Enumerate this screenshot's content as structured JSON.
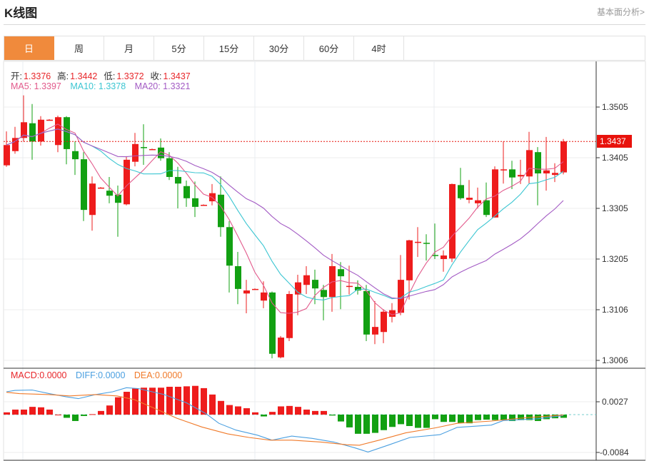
{
  "header": {
    "title": "K线图",
    "link": "基本面分析>"
  },
  "tabs": [
    {
      "label": "日",
      "active": true
    },
    {
      "label": "周"
    },
    {
      "label": "月"
    },
    {
      "label": "5分"
    },
    {
      "label": "15分"
    },
    {
      "label": "30分"
    },
    {
      "label": "60分"
    },
    {
      "label": "4时"
    }
  ],
  "ohlc_legend": {
    "open_label": "开:",
    "open": "1.3376",
    "high_label": "高:",
    "high": "1.3442",
    "low_label": "低:",
    "low": "1.3372",
    "close_label": "收:",
    "close": "1.3437"
  },
  "ma_legend": {
    "ma5": "MA5: 1.3397",
    "ma10": "MA10: 1.3378",
    "ma20": "MA20: 1.3321"
  },
  "macd_legend": {
    "macd": "MACD:0.0000",
    "diff": "DIFF:0.0000",
    "dea": "DEA:0.0000"
  },
  "price_axis": [
    "1.3505",
    "1.3405",
    "1.3305",
    "1.3205",
    "1.3106",
    "1.3006"
  ],
  "macd_axis": [
    "0.0027",
    "-0.0084"
  ],
  "last_price": "1.3437",
  "colors": {
    "up": "#ee1c1c",
    "down": "#12a012",
    "ma5": "#e25a8c",
    "ma10": "#3cc6d2",
    "ma20": "#a35bc4",
    "diff": "#4a9fe0",
    "dea": "#f07a2a",
    "accent": "#f08a3c"
  },
  "chart_data": {
    "type": "candlestick",
    "price_range": [
      1.299,
      1.356
    ],
    "candles_ohlc": [
      [
        1.339,
        1.3457,
        1.3387,
        1.343
      ],
      [
        1.3418,
        1.3466,
        1.3413,
        1.3444
      ],
      [
        1.3444,
        1.3528,
        1.3437,
        1.3475
      ],
      [
        1.3473,
        1.3511,
        1.3401,
        1.3437
      ],
      [
        1.3437,
        1.3487,
        1.3429,
        1.348
      ],
      [
        1.3479,
        1.3481,
        1.3479,
        1.348
      ],
      [
        1.343,
        1.3488,
        1.3416,
        1.3485
      ],
      [
        1.3485,
        1.3487,
        1.3392,
        1.3422
      ],
      [
        1.3418,
        1.3437,
        1.3371,
        1.3402
      ],
      [
        1.3402,
        1.3416,
        1.328,
        1.3302
      ],
      [
        1.3292,
        1.3368,
        1.3261,
        1.3354
      ],
      [
        1.3345,
        1.3347,
        1.3345,
        1.3346
      ],
      [
        1.334,
        1.3367,
        1.3315,
        1.333
      ],
      [
        1.3332,
        1.335,
        1.3249,
        1.3316
      ],
      [
        1.3313,
        1.3408,
        1.3311,
        1.3401
      ],
      [
        1.3397,
        1.3454,
        1.3388,
        1.3432
      ],
      [
        1.3426,
        1.3471,
        1.3391,
        1.3425
      ],
      [
        1.3421,
        1.3423,
        1.3421,
        1.3422
      ],
      [
        1.3425,
        1.3443,
        1.3399,
        1.3404
      ],
      [
        1.3404,
        1.3416,
        1.3361,
        1.3367
      ],
      [
        1.3367,
        1.3387,
        1.3305,
        1.3354
      ],
      [
        1.3349,
        1.336,
        1.3308,
        1.3325
      ],
      [
        1.3325,
        1.3358,
        1.3288,
        1.3308
      ],
      [
        1.3311,
        1.3313,
        1.3311,
        1.3312
      ],
      [
        1.3319,
        1.3353,
        1.3311,
        1.3335
      ],
      [
        1.3332,
        1.3368,
        1.3249,
        1.3268
      ],
      [
        1.3268,
        1.328,
        1.3139,
        1.3192
      ],
      [
        1.3191,
        1.3219,
        1.3116,
        1.3146
      ],
      [
        1.3137,
        1.3164,
        1.3098,
        1.3143
      ],
      [
        1.3145,
        1.3147,
        1.3145,
        1.3146
      ],
      [
        1.3123,
        1.3161,
        1.3108,
        1.3139
      ],
      [
        1.3139,
        1.3141,
        1.3009,
        1.3018
      ],
      [
        1.3011,
        1.3053,
        1.3009,
        1.305
      ],
      [
        1.3049,
        1.3142,
        1.3043,
        1.3136
      ],
      [
        1.3135,
        1.3174,
        1.3094,
        1.3159
      ],
      [
        1.3154,
        1.3191,
        1.3136,
        1.3173
      ],
      [
        1.3164,
        1.3184,
        1.3116,
        1.3147
      ],
      [
        1.3144,
        1.3154,
        1.3084,
        1.313
      ],
      [
        1.313,
        1.3215,
        1.3101,
        1.3191
      ],
      [
        1.3185,
        1.3199,
        1.3106,
        1.3171
      ],
      [
        1.3151,
        1.3192,
        1.3135,
        1.3152
      ],
      [
        1.315,
        1.3163,
        1.3135,
        1.3143
      ],
      [
        1.3142,
        1.3154,
        1.3043,
        1.3056
      ],
      [
        1.3056,
        1.3122,
        1.3037,
        1.3071
      ],
      [
        1.3061,
        1.3106,
        1.3039,
        1.3101
      ],
      [
        1.3091,
        1.3118,
        1.308,
        1.3104
      ],
      [
        1.3099,
        1.3213,
        1.3094,
        1.3164
      ],
      [
        1.3163,
        1.3243,
        1.3125,
        1.3242
      ],
      [
        1.3238,
        1.3268,
        1.3209,
        1.3239
      ],
      [
        1.3237,
        1.3254,
        1.3202,
        1.3236
      ],
      [
        1.3213,
        1.3275,
        1.3205,
        1.3212
      ],
      [
        1.3205,
        1.3222,
        1.318,
        1.3212
      ],
      [
        1.3206,
        1.3354,
        1.3199,
        1.3353
      ],
      [
        1.3351,
        1.3385,
        1.3322,
        1.3325
      ],
      [
        1.3322,
        1.3361,
        1.3315,
        1.3326
      ],
      [
        1.3315,
        1.3346,
        1.3305,
        1.3321
      ],
      [
        1.3321,
        1.3356,
        1.3288,
        1.3292
      ],
      [
        1.3287,
        1.3388,
        1.3287,
        1.3382
      ],
      [
        1.338,
        1.3437,
        1.3354,
        1.3382
      ],
      [
        1.3382,
        1.3399,
        1.3343,
        1.3366
      ],
      [
        1.3368,
        1.3401,
        1.3353,
        1.3371
      ],
      [
        1.3368,
        1.3456,
        1.3354,
        1.342
      ],
      [
        1.3416,
        1.3426,
        1.3311,
        1.3374
      ],
      [
        1.3374,
        1.3446,
        1.334,
        1.338
      ],
      [
        1.3371,
        1.3394,
        1.3357,
        1.3375
      ],
      [
        1.3376,
        1.3442,
        1.3372,
        1.3437
      ]
    ],
    "macd_range": [
      -0.0087,
      0.0045
    ],
    "macd_hist": [
      0.0005,
      0.0011,
      0.0011,
      0.0017,
      0.0016,
      0.0011,
      0.0,
      -0.0007,
      -0.0014,
      -0.0003,
      0.0001,
      0.0008,
      0.002,
      0.0038,
      0.005,
      0.0057,
      0.0059,
      0.0059,
      0.0059,
      0.0061,
      0.0061,
      0.0062,
      0.0063,
      0.0058,
      0.0044,
      0.003,
      0.0021,
      0.0018,
      0.0014,
      0.0005,
      -0.0004,
      0.0006,
      0.0018,
      0.0019,
      0.0017,
      0.0011,
      0.0008,
      0.0008,
      -0.0002,
      -0.0015,
      -0.0028,
      -0.0042,
      -0.0042,
      -0.004,
      -0.0034,
      -0.0027,
      -0.0021,
      -0.0025,
      -0.0029,
      -0.0029,
      -0.001,
      -0.0016,
      -0.0016,
      -0.0018,
      -0.0019,
      -0.0012,
      -0.0011,
      -0.0012,
      -0.0012,
      -0.0014,
      -0.0012,
      -0.0012,
      -0.0014,
      -0.001,
      -0.0008,
      -0.0007
    ],
    "diff": [
      [
        0,
        0.005
      ],
      [
        1,
        0.0053
      ],
      [
        3,
        0.0054
      ],
      [
        5,
        0.0046
      ],
      [
        7,
        0.0039
      ],
      [
        8.4,
        0.0035
      ],
      [
        10.4,
        0.0044
      ],
      [
        12.4,
        0.005
      ],
      [
        14,
        0.0059
      ],
      [
        15.4,
        0.0057
      ],
      [
        18.4,
        0.0044
      ],
      [
        21,
        0.0026
      ],
      [
        23.3,
        0.0002
      ],
      [
        24.8,
        -0.0019
      ],
      [
        26.8,
        -0.0034
      ],
      [
        29.3,
        -0.0045
      ],
      [
        31,
        -0.0056
      ],
      [
        33.3,
        -0.0047
      ],
      [
        35.7,
        -0.0052
      ],
      [
        38.2,
        -0.006
      ],
      [
        40.7,
        -0.0073
      ],
      [
        42.2,
        -0.0082
      ],
      [
        44.7,
        -0.0066
      ],
      [
        47.1,
        -0.005
      ],
      [
        50.6,
        -0.0044
      ],
      [
        52.6,
        -0.0028
      ],
      [
        56.6,
        -0.0023
      ],
      [
        58,
        -0.0013
      ],
      [
        62,
        -0.0009
      ],
      [
        65,
        -0.0002
      ]
    ],
    "dea": [
      [
        0,
        0.0049
      ],
      [
        1.5,
        0.0046
      ],
      [
        5,
        0.0044
      ],
      [
        7.4,
        0.0041
      ],
      [
        10.4,
        0.0044
      ],
      [
        12.9,
        0.0041
      ],
      [
        14.9,
        0.0033
      ],
      [
        17.4,
        0.0013
      ],
      [
        19.9,
        -0.0008
      ],
      [
        22.8,
        -0.0027
      ],
      [
        25.8,
        -0.0042
      ],
      [
        28.3,
        -0.005
      ],
      [
        30.8,
        -0.0056
      ],
      [
        33.3,
        -0.0056
      ],
      [
        36.7,
        -0.006
      ],
      [
        39.7,
        -0.0066
      ],
      [
        41.2,
        -0.0067
      ],
      [
        43.7,
        -0.0055
      ],
      [
        46.6,
        -0.004
      ],
      [
        50.1,
        -0.0029
      ],
      [
        52.6,
        -0.0019
      ],
      [
        56.6,
        -0.0014
      ],
      [
        60.5,
        -0.0007
      ],
      [
        65,
        -0.0001
      ]
    ]
  }
}
